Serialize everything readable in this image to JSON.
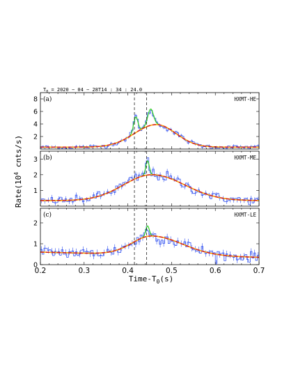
{
  "header": {
    "time_label_prefix": "T",
    "time_label_sub": "0",
    "time_label_value": " = 2020 − 04 − 28T14 : 34 : 24.0"
  },
  "y_axis_label": {
    "main": "Rate(10",
    "exp": "4",
    "tail": " cnts/s)"
  },
  "x_axis_label": {
    "main": "Time-T",
    "sub": "0",
    "tail": "(s)"
  },
  "colors": {
    "data": "#3050f0",
    "model_total": "#d62020",
    "model_smooth": "#ffa500",
    "peaks": "#30d020",
    "frame": "#000000"
  },
  "chart_data": [
    {
      "type": "line",
      "panel_label": "(a)",
      "instrument": "HXMT-HE",
      "xlim": [
        0.2,
        0.7
      ],
      "ylim": [
        0,
        9
      ],
      "yticks": [
        2,
        4,
        6,
        8
      ],
      "xticks": [
        0.2,
        0.3,
        0.4,
        0.5,
        0.6,
        0.7
      ],
      "vlines": [
        0.415,
        0.443
      ],
      "baseline": 0.3,
      "broad_amp": 3.6,
      "broad_center": 0.465,
      "broad_sigma_left": 0.05,
      "broad_sigma_right": 0.045,
      "peaks": [
        {
          "center": 0.418,
          "amp": 2.5,
          "sigma": 0.005
        },
        {
          "center": 0.452,
          "amp": 2.6,
          "sigma": 0.0065
        }
      ],
      "noise": 0.25,
      "bin": 0.004
    },
    {
      "type": "line",
      "panel_label": "(b)",
      "instrument": "HXMT-ME",
      "xlim": [
        0.2,
        0.7
      ],
      "ylim": [
        0,
        3.5
      ],
      "yticks": [
        1,
        2,
        3
      ],
      "xticks": [
        0.2,
        0.3,
        0.4,
        0.5,
        0.6,
        0.7
      ],
      "vlines": [
        0.415,
        0.443
      ],
      "baseline": 0.35,
      "broad_amp": 1.65,
      "broad_center": 0.455,
      "broad_sigma_left": 0.065,
      "broad_sigma_right": 0.075,
      "peaks": [
        {
          "center": 0.445,
          "amp": 0.9,
          "sigma": 0.004
        }
      ],
      "noise": 0.18,
      "bin": 0.004
    },
    {
      "type": "line",
      "panel_label": "(c)",
      "instrument": "HXMT-LE",
      "xlim": [
        0.2,
        0.7
      ],
      "ylim": [
        0,
        2.7
      ],
      "yticks": [
        0,
        1,
        2
      ],
      "xticks": [
        0.2,
        0.3,
        0.4,
        0.5,
        0.6,
        0.7
      ],
      "vlines": [
        0.415,
        0.443
      ],
      "baseline": 0.6,
      "baseline_slope": -0.5,
      "broad_amp": 0.9,
      "broad_center": 0.455,
      "broad_sigma_left": 0.045,
      "broad_sigma_right": 0.07,
      "peaks": [
        {
          "center": 0.445,
          "amp": 0.5,
          "sigma": 0.004
        }
      ],
      "noise": 0.17,
      "bin": 0.004
    }
  ]
}
